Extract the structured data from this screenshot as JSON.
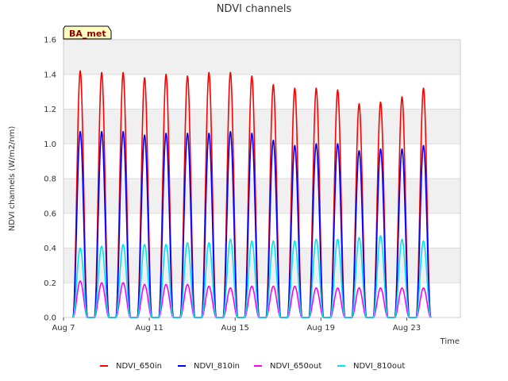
{
  "chart_data": {
    "type": "line",
    "title": "NDVI channels",
    "xlabel": "Time",
    "ylabel": "NDVI channels (W/m2/nm)",
    "badge": "BA_met",
    "xlim": [
      7.0,
      25.5
    ],
    "ylim": [
      0.0,
      1.6
    ],
    "x_ticks": [
      {
        "value": 7,
        "label": "Aug 7"
      },
      {
        "value": 11,
        "label": "Aug 11"
      },
      {
        "value": 15,
        "label": "Aug 15"
      },
      {
        "value": 19,
        "label": "Aug 19"
      },
      {
        "value": 23,
        "label": "Aug 23"
      }
    ],
    "y_ticks": [
      0.0,
      0.2,
      0.4,
      0.6,
      0.8,
      1.0,
      1.2,
      1.4,
      1.6
    ],
    "y_tick_labels": [
      "0.0",
      "0.2",
      "0.4",
      "0.6",
      "0.8",
      "1.0",
      "1.2",
      "1.4",
      "1.6"
    ],
    "day_centers": [
      7.78,
      8.78,
      9.78,
      10.78,
      11.78,
      12.78,
      13.78,
      14.78,
      15.78,
      16.78,
      17.78,
      18.78,
      19.78,
      20.78,
      21.78,
      22.78,
      23.78
    ],
    "series": [
      {
        "name": "NDVI_650in",
        "color": "#ff0000",
        "daily_peaks": [
          1.42,
          1.41,
          1.41,
          1.38,
          1.4,
          1.39,
          1.41,
          1.41,
          1.39,
          1.34,
          1.32,
          1.32,
          1.31,
          1.23,
          1.24,
          1.27,
          1.32
        ]
      },
      {
        "name": "NDVI_810in",
        "color": "#0000ff",
        "daily_peaks": [
          1.07,
          1.07,
          1.07,
          1.05,
          1.06,
          1.06,
          1.06,
          1.07,
          1.06,
          1.02,
          0.99,
          1.0,
          1.0,
          0.96,
          0.97,
          0.97,
          0.99
        ]
      },
      {
        "name": "NDVI_650out",
        "color": "#ff00ff",
        "daily_peaks": [
          0.21,
          0.2,
          0.2,
          0.19,
          0.19,
          0.19,
          0.18,
          0.17,
          0.18,
          0.18,
          0.18,
          0.17,
          0.17,
          0.17,
          0.17,
          0.17,
          0.17
        ]
      },
      {
        "name": "NDVI_810out",
        "color": "#00e5ee",
        "daily_peaks": [
          0.4,
          0.41,
          0.42,
          0.42,
          0.42,
          0.43,
          0.43,
          0.45,
          0.44,
          0.44,
          0.44,
          0.45,
          0.45,
          0.46,
          0.47,
          0.45,
          0.44
        ]
      }
    ],
    "legend_position": "bottom",
    "grid": true
  }
}
